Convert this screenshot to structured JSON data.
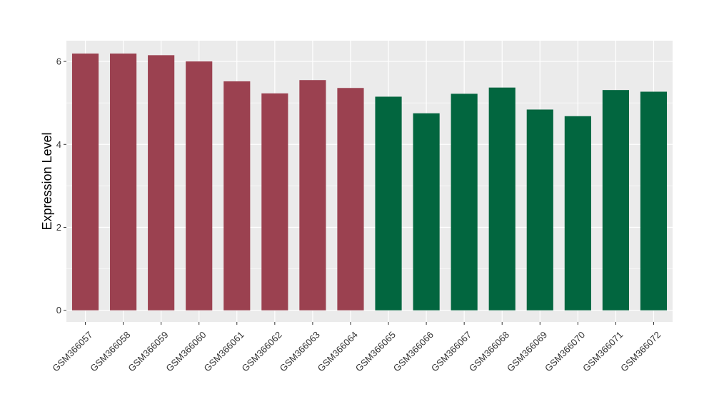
{
  "chart_data": {
    "type": "bar",
    "title": "",
    "xlabel": "",
    "ylabel": "Expression Level",
    "categories": [
      "GSM366057",
      "GSM366058",
      "GSM366059",
      "GSM366060",
      "GSM366061",
      "GSM366062",
      "GSM366063",
      "GSM366064",
      "GSM366065",
      "GSM366066",
      "GSM366067",
      "GSM366068",
      "GSM366069",
      "GSM366070",
      "GSM366071",
      "GSM366072"
    ],
    "values": [
      6.19,
      6.19,
      6.15,
      6.0,
      5.52,
      5.23,
      5.55,
      5.36,
      5.15,
      4.75,
      5.22,
      5.37,
      4.84,
      4.68,
      5.31,
      5.27
    ],
    "bar_colors": [
      "#9b4150",
      "#9b4150",
      "#9b4150",
      "#9b4150",
      "#9b4150",
      "#9b4150",
      "#9b4150",
      "#9b4150",
      "#02663f",
      "#02663f",
      "#02663f",
      "#02663f",
      "#02663f",
      "#02663f",
      "#02663f",
      "#02663f"
    ],
    "ylim": [
      -0.28,
      6.5
    ],
    "yticks": [
      0,
      2,
      4,
      6
    ],
    "ytick_labels": [
      "0",
      "2",
      "4",
      "6"
    ],
    "grid": true,
    "legend": "none",
    "panel_background": "#ebebeb",
    "grid_color": "#ffffff"
  }
}
